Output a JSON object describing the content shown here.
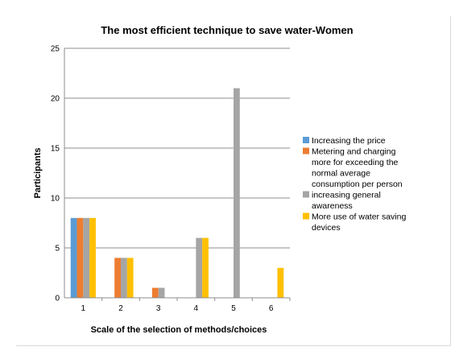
{
  "chart_data": {
    "type": "bar",
    "title": "The most efficient technique to save water-Women",
    "xlabel": "Scale of the selection of methods/choices",
    "ylabel": "Participants",
    "categories": [
      "1",
      "2",
      "3",
      "4",
      "5",
      "6"
    ],
    "ylim": [
      0,
      25
    ],
    "yticks": [
      0,
      5,
      10,
      15,
      20,
      25
    ],
    "grid": true,
    "legend_position": "right",
    "series": [
      {
        "name": "Increasing the price",
        "legend_lines": [
          "Increasing the price"
        ],
        "color": "#5b9bd5",
        "values": [
          8,
          0,
          0,
          0,
          0,
          0
        ]
      },
      {
        "name": "Metering and charging more for exceeding the normal average consumption per person",
        "legend_lines": [
          "Metering and charging",
          "more for exceeding the",
          "normal average",
          "consumption per person"
        ],
        "color": "#ed7d31",
        "values": [
          8,
          4,
          1,
          0,
          0,
          0
        ]
      },
      {
        "name": "increasing general awareness",
        "legend_lines": [
          "increasing general",
          "awareness"
        ],
        "color": "#a5a5a5",
        "values": [
          8,
          4,
          1,
          6,
          21,
          0
        ]
      },
      {
        "name": "More use of water saving devices",
        "legend_lines": [
          "More use of water saving",
          "devices"
        ],
        "color": "#ffc000",
        "values": [
          8,
          4,
          0,
          6,
          0,
          3
        ]
      }
    ]
  }
}
